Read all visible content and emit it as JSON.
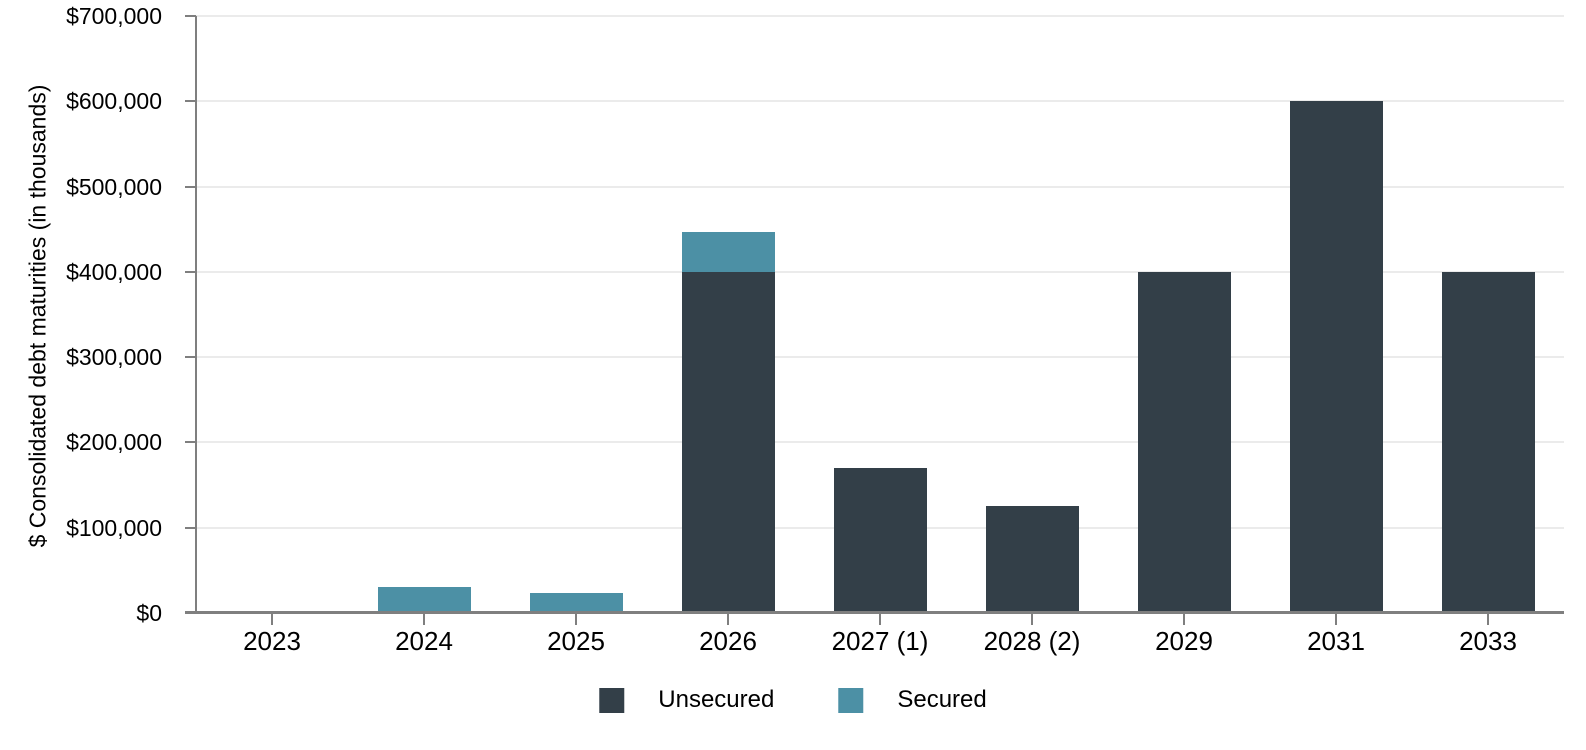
{
  "chart_data": {
    "type": "bar",
    "stacked": true,
    "categories": [
      "2023",
      "2024",
      "2025",
      "2026",
      "2027 (1)",
      "2028 (2)",
      "2029",
      "2031",
      "2033"
    ],
    "series": [
      {
        "name": "Unsecured",
        "color": "#333F48",
        "values": [
          0,
          0,
          0,
          400000,
          170000,
          125000,
          400000,
          600000,
          400000
        ]
      },
      {
        "name": "Secured",
        "color": "#4C90A5",
        "values": [
          0,
          30000,
          23000,
          47000,
          0,
          0,
          0,
          0,
          0
        ]
      }
    ],
    "title": "",
    "xlabel": "",
    "ylabel": "$ Consolidated debt maturities (in thousands)",
    "ylim": [
      0,
      700000
    ],
    "ytick_step": 100000,
    "ytick_labels": [
      "$0",
      "$100,000",
      "$200,000",
      "$300,000",
      "$400,000",
      "$500,000",
      "$600,000",
      "$700,000"
    ],
    "grid": "horizontal",
    "legend_position": "bottom-center"
  },
  "legend": {
    "items": [
      {
        "label": "Unsecured",
        "color": "#333F48"
      },
      {
        "label": "Secured",
        "color": "#4C90A5"
      }
    ]
  },
  "colors": {
    "background": "#FFFFFF",
    "axis": "#7F7F7F",
    "gridline": "#EBEBEB",
    "text": "#000000",
    "unsecured": "#333F48",
    "secured": "#4C90A5"
  }
}
